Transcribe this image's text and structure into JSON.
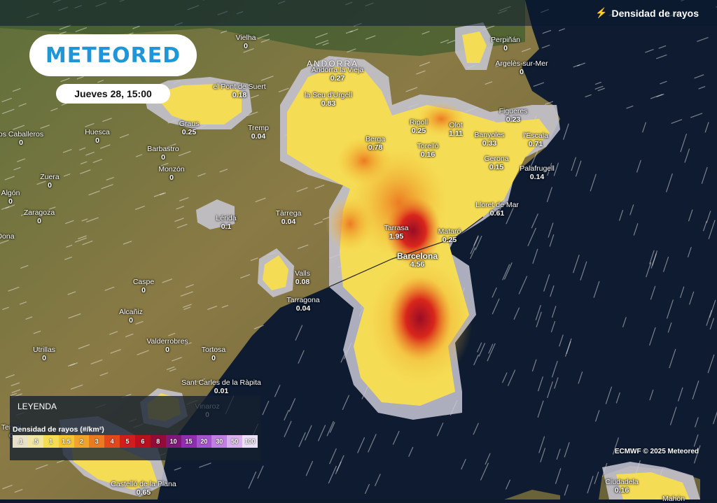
{
  "header": {
    "layer_title": "Densidad de rayos",
    "layer_icon": "lightning-icon"
  },
  "brand": {
    "logo_text": "METEORED",
    "color": "#1e96d8"
  },
  "date_label": "Jueves 28, 15:00",
  "region_label": "ANDORRA",
  "legend": {
    "title": "LEYENDA",
    "subtitle": "Densidad de rayos (#/km²)",
    "steps": [
      {
        "label": ".1",
        "color": "#e8e0c8"
      },
      {
        "label": ".5",
        "color": "#f2e6a2"
      },
      {
        "label": "1",
        "color": "#f5dc55"
      },
      {
        "label": "1.5",
        "color": "#f4c534"
      },
      {
        "label": "2",
        "color": "#f2a42a"
      },
      {
        "label": "3",
        "color": "#ec7a22"
      },
      {
        "label": "4",
        "color": "#e2481c"
      },
      {
        "label": "5",
        "color": "#d01d1d"
      },
      {
        "label": "6",
        "color": "#b8101e"
      },
      {
        "label": "8",
        "color": "#920c3a"
      },
      {
        "label": "10",
        "color": "#801a7a"
      },
      {
        "label": "15",
        "color": "#8e2fb0"
      },
      {
        "label": "20",
        "color": "#a653d0"
      },
      {
        "label": "30",
        "color": "#c080e0"
      },
      {
        "label": "50",
        "color": "#d8b0ee"
      },
      {
        "label": "100",
        "color": "#ece0f6"
      }
    ]
  },
  "credit": "ECMWF © 2025 Meteored",
  "cities": [
    {
      "name": "Vielha",
      "value": "0"
    },
    {
      "name": "Andorra la Vieja",
      "value": "0.27"
    },
    {
      "name": "Perpiñán",
      "value": "0"
    },
    {
      "name": "Argelès-sur-Mer",
      "value": "0"
    },
    {
      "name": "el Pont de Suert",
      "value": "0.18"
    },
    {
      "name": "la Seu d'Urgell",
      "value": "0.83"
    },
    {
      "name": "Graus",
      "value": "0.25"
    },
    {
      "name": "Tremp",
      "value": "0.04"
    },
    {
      "name": "Ripoll",
      "value": "0.25"
    },
    {
      "name": "Olot",
      "value": "1.11"
    },
    {
      "name": "Figueres",
      "value": "0.23"
    },
    {
      "name": "Banyoles",
      "value": "0.33"
    },
    {
      "name": "l'Escala",
      "value": "0.71"
    },
    {
      "name": "os Caballeros",
      "value": "0"
    },
    {
      "name": "Huesca",
      "value": "0"
    },
    {
      "name": "Berga",
      "value": "0.78"
    },
    {
      "name": "Torelló",
      "value": "0.16"
    },
    {
      "name": "Barbastro",
      "value": "0"
    },
    {
      "name": "Gerona",
      "value": "0.15"
    },
    {
      "name": "Palafrugell",
      "value": "0.14"
    },
    {
      "name": "Monzón",
      "value": "0"
    },
    {
      "name": "Zuera",
      "value": "0"
    },
    {
      "name": "Algón",
      "value": "0"
    },
    {
      "name": "Lloret de Mar",
      "value": "0.61"
    },
    {
      "name": "Zaragoza",
      "value": "0"
    },
    {
      "name": "Lérida",
      "value": "0.1"
    },
    {
      "name": "Tàrrega",
      "value": "0.04"
    },
    {
      "name": "Tarrasa",
      "value": "1.95"
    },
    {
      "name": "Mataró",
      "value": "0.25"
    },
    {
      "name": "Dona",
      "value": ""
    },
    {
      "name": "Barcelona",
      "value": "4.56"
    },
    {
      "name": "Valls",
      "value": "0.08"
    },
    {
      "name": "Caspe",
      "value": "0"
    },
    {
      "name": "Tarragona",
      "value": "0.04"
    },
    {
      "name": "Alcañiz",
      "value": "0"
    },
    {
      "name": "Valderrobres",
      "value": "0"
    },
    {
      "name": "Tortosa",
      "value": "0"
    },
    {
      "name": "Utrillas",
      "value": "0"
    },
    {
      "name": "Sant Carles de la Ràpita",
      "value": "0.01"
    },
    {
      "name": "Vinaroz",
      "value": "0"
    },
    {
      "name": "Teruel",
      "value": "0"
    },
    {
      "name": "Castelló de la Plana",
      "value": "0.65"
    },
    {
      "name": "Ciudadela",
      "value": "0.16"
    },
    {
      "name": "Mahón",
      "value": ""
    }
  ]
}
